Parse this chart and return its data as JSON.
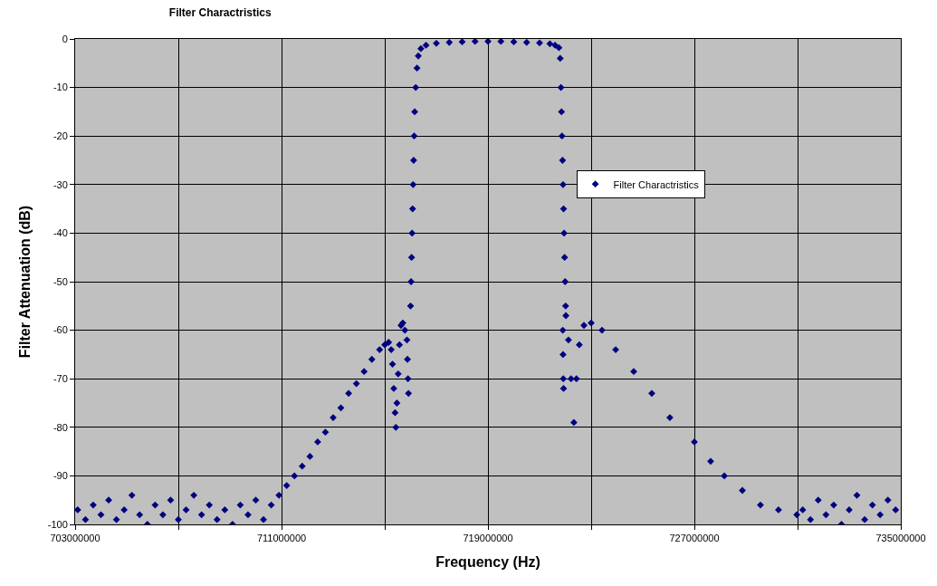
{
  "chart_data": {
    "type": "scatter",
    "title": "Filter Charactristics",
    "xlabel": "Frequency (Hz)",
    "ylabel": "Filter Attenuation (dB)",
    "series": [
      {
        "name": "Filter Charactristics",
        "color": "#000080",
        "x": [
          703100000,
          703400000,
          703700000,
          704000000,
          704300000,
          704600000,
          704900000,
          705200000,
          705500000,
          705800000,
          706100000,
          706400000,
          706700000,
          707000000,
          707300000,
          707600000,
          707900000,
          708200000,
          708500000,
          708800000,
          709100000,
          709400000,
          709700000,
          710000000,
          710300000,
          710600000,
          710900000,
          711200000,
          711500000,
          711800000,
          712100000,
          712400000,
          712700000,
          713000000,
          713300000,
          713600000,
          713900000,
          714200000,
          714500000,
          714800000,
          715000000,
          715150000,
          715250000,
          715300000,
          715350000,
          715400000,
          715430000,
          715470000,
          715520000,
          715570000,
          715630000,
          715700000,
          715780000,
          715860000,
          715880000,
          715900000,
          715920000,
          716000000,
          716020000,
          716040000,
          716060000,
          716080000,
          716100000,
          716120000,
          716140000,
          716160000,
          716200000,
          716250000,
          716300000,
          716400000,
          716600000,
          717000000,
          717500000,
          718000000,
          718500000,
          719000000,
          719500000,
          720000000,
          720500000,
          721000000,
          721400000,
          721600000,
          721750000,
          721800000,
          721830000,
          721850000,
          721870000,
          721890000,
          721910000,
          721930000,
          721950000,
          721970000,
          721990000,
          722010000,
          721900000,
          721910000,
          721920000,
          721930000,
          722020000,
          722120000,
          722220000,
          722330000,
          722430000,
          722540000,
          722720000,
          723000000,
          723420000,
          723950000,
          724650000,
          725350000,
          726050000,
          727000000,
          727630000,
          728160000,
          728860000,
          729560000,
          730260000,
          730970000,
          731200000,
          731500000,
          731800000,
          732100000,
          732400000,
          732700000,
          733000000,
          733300000,
          733600000,
          733900000,
          734200000,
          734500000,
          734800000
        ],
        "values": [
          -97,
          -99,
          -96,
          -98,
          -95,
          -99,
          -97,
          -94,
          -98,
          -100,
          -96,
          -98,
          -95,
          -99,
          -97,
          -94,
          -98,
          -96,
          -99,
          -97,
          -100,
          -96,
          -98,
          -95,
          -99,
          -96,
          -94,
          -92,
          -90,
          -88,
          -86,
          -83,
          -81,
          -78,
          -76,
          -73,
          -71,
          -68.5,
          -66,
          -64,
          -63,
          -62.5,
          -64,
          -67,
          -72,
          -77,
          -80,
          -75,
          -69,
          -63,
          -59,
          -58.5,
          -60,
          -62,
          -66,
          -70,
          -73,
          -55,
          -50,
          -45,
          -40,
          -35,
          -30,
          -25,
          -20,
          -15,
          -10,
          -6,
          -3.5,
          -2,
          -1.3,
          -0.9,
          -0.7,
          -0.6,
          -0.5,
          -0.5,
          -0.5,
          -0.6,
          -0.7,
          -0.8,
          -1,
          -1.3,
          -1.8,
          -4,
          -10,
          -15,
          -20,
          -25,
          -30,
          -35,
          -40,
          -45,
          -50,
          -55,
          -60,
          -65,
          -70,
          -72,
          -57,
          -62,
          -70,
          -79,
          -70,
          -63,
          -59,
          -58.5,
          -60,
          -64,
          -68.5,
          -73,
          -78,
          -83,
          -87,
          -90,
          -93,
          -96,
          -97,
          -98,
          -97,
          -99,
          -95,
          -98,
          -96,
          -100,
          -97,
          -94,
          -99,
          -96,
          -98,
          -95,
          -97
        ]
      }
    ],
    "xlim": [
      703000000,
      735000000
    ],
    "xticks": [
      703000000,
      {
        "value": 707000000,
        "label": null
      },
      711000000,
      {
        "value": 715000000,
        "label": null
      },
      719000000,
      {
        "value": 723000000,
        "label": null
      },
      727000000,
      {
        "value": 731000000,
        "label": null
      },
      735000000
    ],
    "ylim": [
      -100,
      0
    ],
    "yticks": [
      -100,
      -90,
      -80,
      -70,
      -60,
      -50,
      -40,
      -30,
      -20,
      -10,
      0
    ],
    "grid": true,
    "legend": "right",
    "marker": "diamond"
  }
}
